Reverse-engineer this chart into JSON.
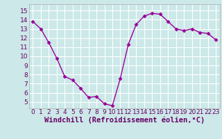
{
  "x": [
    0,
    1,
    2,
    3,
    4,
    5,
    6,
    7,
    8,
    9,
    10,
    11,
    12,
    13,
    14,
    15,
    16,
    17,
    18,
    19,
    20,
    21,
    22,
    23
  ],
  "y": [
    13.8,
    13.0,
    11.5,
    9.8,
    7.8,
    7.4,
    6.5,
    5.5,
    5.6,
    4.8,
    4.6,
    7.6,
    11.3,
    13.5,
    14.4,
    14.7,
    14.6,
    13.8,
    13.0,
    12.8,
    13.0,
    12.6,
    12.5,
    11.8
  ],
  "line_color": "#990099",
  "marker": "D",
  "markersize": 2.5,
  "linewidth": 1.0,
  "xlim": [
    -0.5,
    23.5
  ],
  "ylim": [
    4.3,
    15.7
  ],
  "yticks": [
    5,
    6,
    7,
    8,
    9,
    10,
    11,
    12,
    13,
    14,
    15
  ],
  "xticks": [
    0,
    1,
    2,
    3,
    4,
    5,
    6,
    7,
    8,
    9,
    10,
    11,
    12,
    13,
    14,
    15,
    16,
    17,
    18,
    19,
    20,
    21,
    22,
    23
  ],
  "xlabel": "Windchill (Refroidissement éolien,°C)",
  "xlabel_color": "#660066",
  "bg_color": "#cce8e8",
  "grid_color": "#ffffff",
  "tick_label_fontsize": 6.5,
  "xlabel_fontsize": 7.5,
  "spine_color": "#aaaaaa"
}
